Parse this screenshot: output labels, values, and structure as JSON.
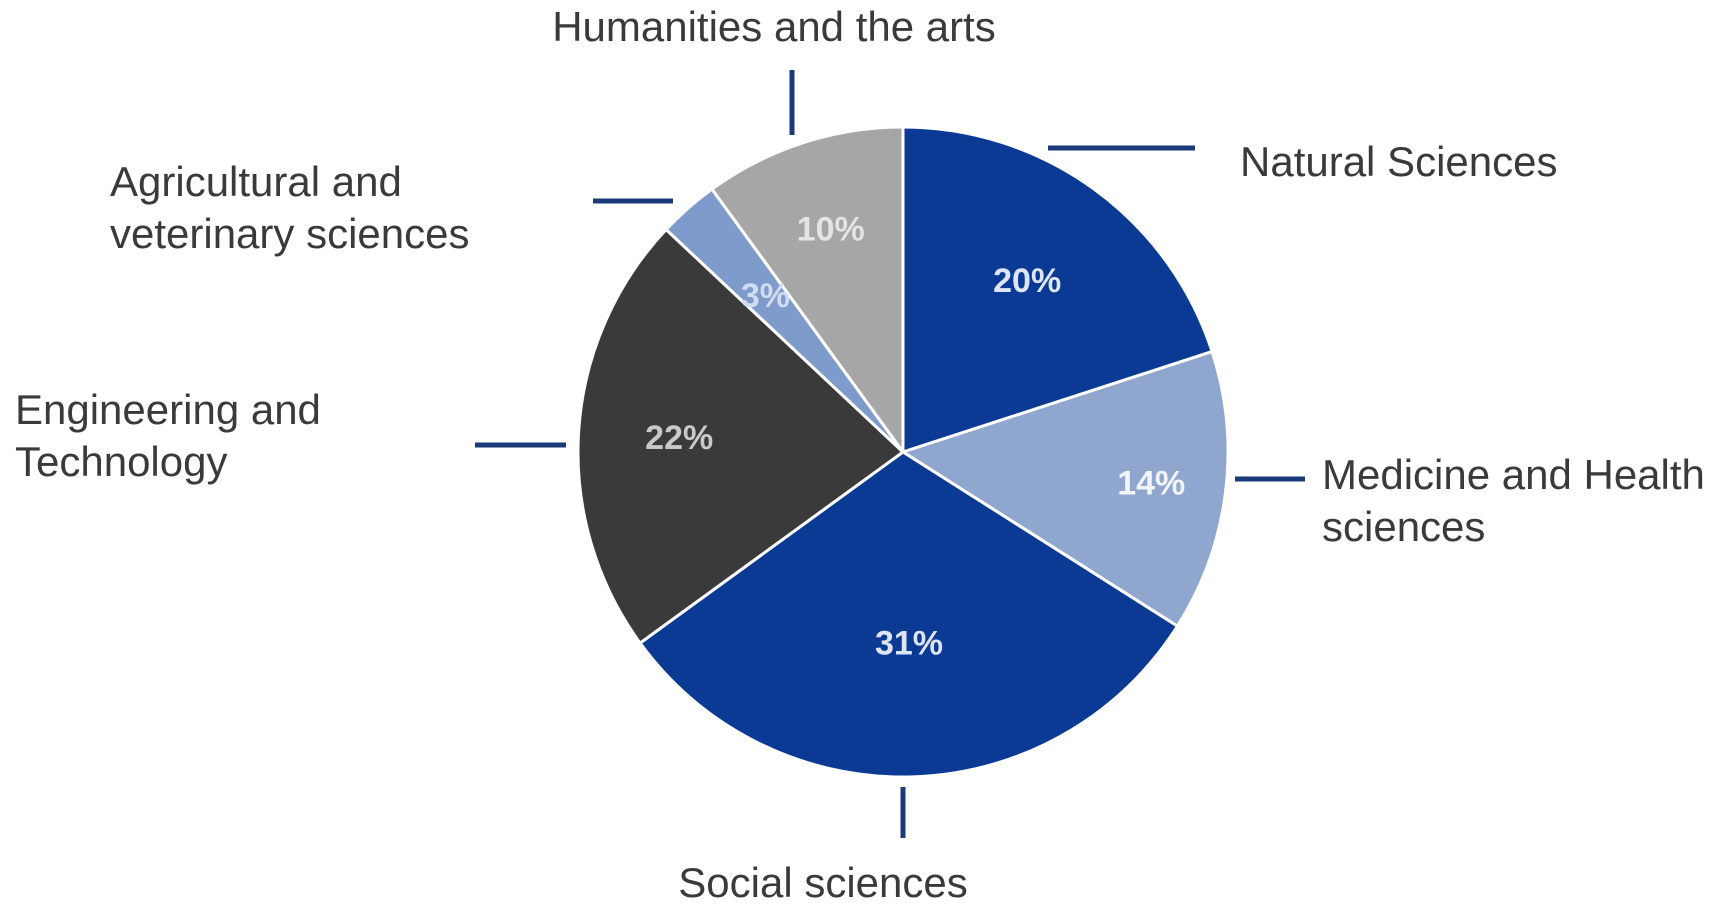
{
  "chart_data": {
    "type": "pie",
    "title": "",
    "start_angle_deg": 0,
    "direction": "clockwise",
    "slices": [
      {
        "label": [
          "Natural Sciences"
        ],
        "value": 20,
        "value_label": "20%",
        "color": "#0b3a94",
        "text_color": "#dce6f8"
      },
      {
        "label": [
          "Medicine and Health",
          "sciences"
        ],
        "value": 14,
        "value_label": "14%",
        "color": "#8fa6cf",
        "text_color": "#f2f5fb"
      },
      {
        "label": [
          "Social sciences"
        ],
        "value": 31,
        "value_label": "31%",
        "color": "#0b3a94",
        "text_color": "#dce6f8"
      },
      {
        "label": [
          "Engineering and",
          "Technology"
        ],
        "value": 22,
        "value_label": "22%",
        "color": "#3a3a3a",
        "text_color": "#c9c9c9"
      },
      {
        "label": [
          "Agricultural and",
          "veterinary sciences"
        ],
        "value": 3,
        "value_label": "3%",
        "color": "#7f9bcb",
        "text_color": "#cfdcf2"
      },
      {
        "label": [
          "Humanities and the arts"
        ],
        "value": 10,
        "value_label": "10%",
        "color": "#a6a6a6",
        "text_color": "#e4e4e4"
      }
    ],
    "colors": {
      "leader_line": "#1a3a7a",
      "slice_border": "#ffffff",
      "category_text": "#3a3a3a"
    }
  }
}
